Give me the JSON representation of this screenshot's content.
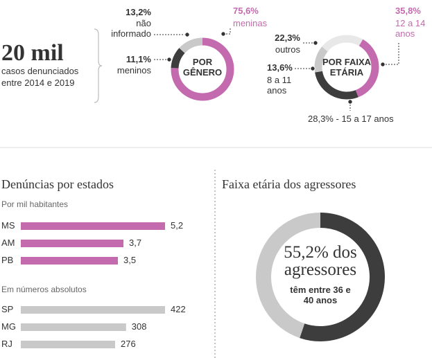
{
  "summary": {
    "headline": "20 mil",
    "caption": "casos denunciados entre 2014 e 2019"
  },
  "chart_data": [
    {
      "type": "donut",
      "title": "POR GÊNERO",
      "categories": [
        "meninas",
        "meninos",
        "não informado"
      ],
      "values": [
        75.6,
        11.1,
        13.2
      ],
      "value_labels": [
        "75,6%",
        "11,1%",
        "13,2%"
      ],
      "colors": [
        "#c46aae",
        "#3d3d3d",
        "#c9c9c9"
      ]
    },
    {
      "type": "donut",
      "title": "POR FAIXA ETÁRIA",
      "categories": [
        "12 a 14 anos",
        "- 15 a 17 anos",
        "8 a 11 anos",
        "outros"
      ],
      "values": [
        35.8,
        28.3,
        13.6,
        22.3
      ],
      "value_labels": [
        "35,8%",
        "28,3%",
        "13,6%",
        "22,3%"
      ],
      "colors": [
        "#c46aae",
        "#3d3d3d",
        "#c9c9c9",
        "#e8e8e8"
      ]
    },
    {
      "type": "bar",
      "title": "Denúncias por estados",
      "subtitle": "Por mil habitantes",
      "categories": [
        "MS",
        "AM",
        "PB"
      ],
      "values": [
        5.2,
        3.7,
        3.5
      ],
      "value_labels": [
        "5,2",
        "3,7",
        "3,5"
      ],
      "color": "#c46aae"
    },
    {
      "type": "bar",
      "subtitle": "Em números absolutos",
      "categories": [
        "SP",
        "MG",
        "RJ"
      ],
      "values": [
        422,
        308,
        276
      ],
      "color": "#c9c9c9"
    },
    {
      "type": "donut",
      "title": "Faixa etária dos agressores",
      "values": [
        55.2,
        44.8
      ],
      "value_labels": [
        "55,2%",
        null
      ],
      "center_label": "dos agressores",
      "note": "têm entre 36 e 40 anos",
      "colors": [
        "#3d3d3d",
        "#c9c9c9"
      ]
    }
  ]
}
